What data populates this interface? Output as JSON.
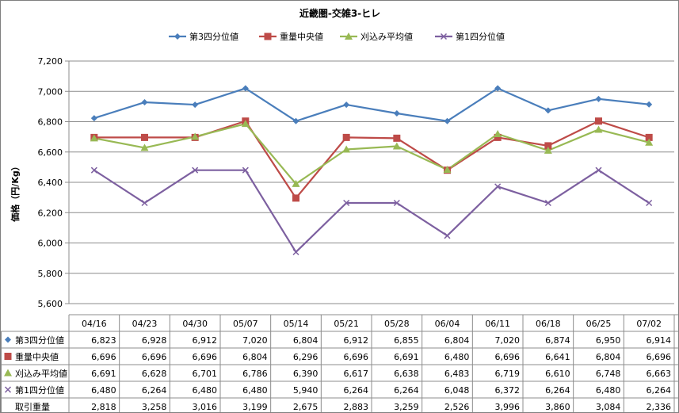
{
  "chart_data": {
    "type": "line",
    "title": "近畿圏-交雑3-ヒレ",
    "ylabel": "価格（円/Kg）",
    "ylim": [
      5600,
      7200
    ],
    "yticks": [
      "7,200",
      "7,000",
      "6,800",
      "6,600",
      "6,400",
      "6,200",
      "6,000",
      "5,800",
      "5,600"
    ],
    "ytick_values": [
      7200,
      7000,
      6800,
      6600,
      6400,
      6200,
      6000,
      5800,
      5600
    ],
    "grid": true,
    "legend_position": "top",
    "categories": [
      "04/16",
      "04/23",
      "04/30",
      "05/07",
      "05/14",
      "05/21",
      "05/28",
      "06/04",
      "06/11",
      "06/18",
      "06/25",
      "07/02"
    ],
    "series": [
      {
        "name": "第3四分位値",
        "color": "#4a7ebb",
        "marker": "diamond",
        "values": [
          6823,
          6928,
          6912,
          7020,
          6804,
          6912,
          6855,
          6804,
          7020,
          6874,
          6950,
          6914
        ],
        "display": [
          "6,823",
          "6,928",
          "6,912",
          "7,020",
          "6,804",
          "6,912",
          "6,855",
          "6,804",
          "7,020",
          "6,874",
          "6,950",
          "6,914"
        ]
      },
      {
        "name": "重量中央値",
        "color": "#be4b48",
        "marker": "square",
        "values": [
          6696,
          6696,
          6696,
          6804,
          6296,
          6696,
          6691,
          6480,
          6696,
          6641,
          6804,
          6696
        ],
        "display": [
          "6,696",
          "6,696",
          "6,696",
          "6,804",
          "6,296",
          "6,696",
          "6,691",
          "6,480",
          "6,696",
          "6,641",
          "6,804",
          "6,696"
        ]
      },
      {
        "name": "刈込み平均値",
        "color": "#98b954",
        "marker": "triangle",
        "values": [
          6691,
          6628,
          6701,
          6786,
          6390,
          6617,
          6638,
          6483,
          6719,
          6610,
          6748,
          6663
        ],
        "display": [
          "6,691",
          "6,628",
          "6,701",
          "6,786",
          "6,390",
          "6,617",
          "6,638",
          "6,483",
          "6,719",
          "6,610",
          "6,748",
          "6,663"
        ]
      },
      {
        "name": "第1四分位値",
        "color": "#7d60a0",
        "marker": "x",
        "values": [
          6480,
          6264,
          6480,
          6480,
          5940,
          6264,
          6264,
          6048,
          6372,
          6264,
          6480,
          6264
        ],
        "display": [
          "6,480",
          "6,264",
          "6,480",
          "6,480",
          "5,940",
          "6,264",
          "6,264",
          "6,048",
          "6,372",
          "6,264",
          "6,480",
          "6,264"
        ]
      }
    ],
    "table_extra_row": {
      "name": "取引重量",
      "display": [
        "2,818",
        "3,258",
        "3,016",
        "3,199",
        "2,675",
        "2,883",
        "3,259",
        "2,526",
        "3,996",
        "3,860",
        "3,084",
        "2,336"
      ]
    }
  }
}
